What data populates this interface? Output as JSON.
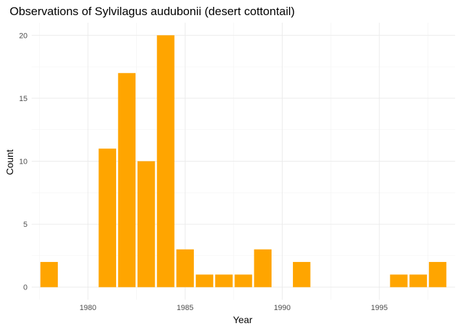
{
  "chart_data": {
    "type": "bar",
    "title": "Observations of Sylvilagus audubonii (desert cottontail)",
    "xlabel": "Year",
    "ylabel": "Count",
    "bar_color": "#FFA500",
    "background": "#FFFFFF",
    "grid": true,
    "legend": "none",
    "x": [
      1978,
      1981,
      1982,
      1983,
      1984,
      1985,
      1986,
      1987,
      1988,
      1989,
      1991,
      1996,
      1997,
      1998
    ],
    "values": [
      2,
      11,
      17,
      10,
      20,
      3,
      1,
      1,
      1,
      3,
      2,
      1,
      1,
      2
    ],
    "xlim": [
      1977.1,
      1998.9
    ],
    "ylim": [
      -1,
      21
    ],
    "x_ticks": [
      1980,
      1985,
      1990,
      1995
    ],
    "x_tick_labels": [
      "1980",
      "1985",
      "1990",
      "1995"
    ],
    "y_ticks": [
      0,
      5,
      10,
      15,
      20
    ],
    "y_tick_labels": [
      "0",
      "5",
      "10",
      "15",
      "20"
    ]
  }
}
